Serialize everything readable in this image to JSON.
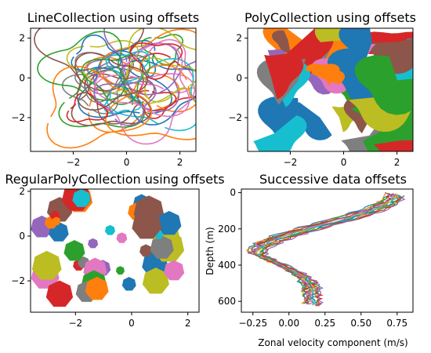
{
  "chart_data": [
    {
      "type": "line",
      "title": "LineCollection using offsets",
      "xlim": [
        -3.6,
        2.6
      ],
      "ylim": [
        -3.7,
        2.5
      ],
      "xticks": [
        -2,
        0,
        2
      ],
      "xtick_labels": [
        "−2",
        "0",
        "2"
      ],
      "yticks": [
        -2,
        0,
        2
      ],
      "ytick_labels": [
        "−2",
        "0",
        "2"
      ],
      "xlabel": "",
      "ylabel": "",
      "grid": false,
      "series_count": 36
    },
    {
      "type": "scatter",
      "title": "PolyCollection using offsets",
      "xlim": [
        -3.6,
        2.6
      ],
      "ylim": [
        -3.7,
        2.5
      ],
      "xticks": [
        -2,
        0,
        2
      ],
      "xtick_labels": [
        "−2",
        "0",
        "2"
      ],
      "yticks": [
        -2,
        0,
        2
      ],
      "ytick_labels": [
        "−2",
        "0",
        "2"
      ],
      "xlabel": "",
      "ylabel": "",
      "grid": false
    },
    {
      "type": "scatter",
      "title": "RegularPolyCollection using offsets",
      "xlim": [
        -3.6,
        2.4
      ],
      "ylim": [
        -3.4,
        2.1
      ],
      "xticks": [
        -2,
        0,
        2
      ],
      "xtick_labels": [
        "−2",
        "0",
        "2"
      ],
      "yticks": [
        -2,
        0,
        2
      ],
      "ytick_labels": [
        "−2",
        "0",
        "2"
      ],
      "xlabel": "",
      "ylabel": "",
      "grid": false
    },
    {
      "type": "line",
      "title": "Successive data offsets",
      "xlim": [
        -0.33,
        0.86
      ],
      "ylim": [
        660,
        -20
      ],
      "xticks": [
        -0.25,
        0.0,
        0.25,
        0.5,
        0.75
      ],
      "xtick_labels": [
        "−0.25",
        "0.00",
        "0.25",
        "0.50",
        "0.75"
      ],
      "yticks": [
        0,
        200,
        400,
        600
      ],
      "ytick_labels": [
        "0",
        "200",
        "400",
        "600"
      ],
      "xlabel": "Zonal velocity component (m/s)",
      "ylabel": "Depth (m)",
      "grid": false,
      "series_count": 15
    }
  ],
  "colors": [
    "#1f77b4",
    "#ff7f0e",
    "#2ca02c",
    "#d62728",
    "#9467bd",
    "#8c564b",
    "#e377c2",
    "#7f7f7f",
    "#bcbd22",
    "#17becf"
  ]
}
